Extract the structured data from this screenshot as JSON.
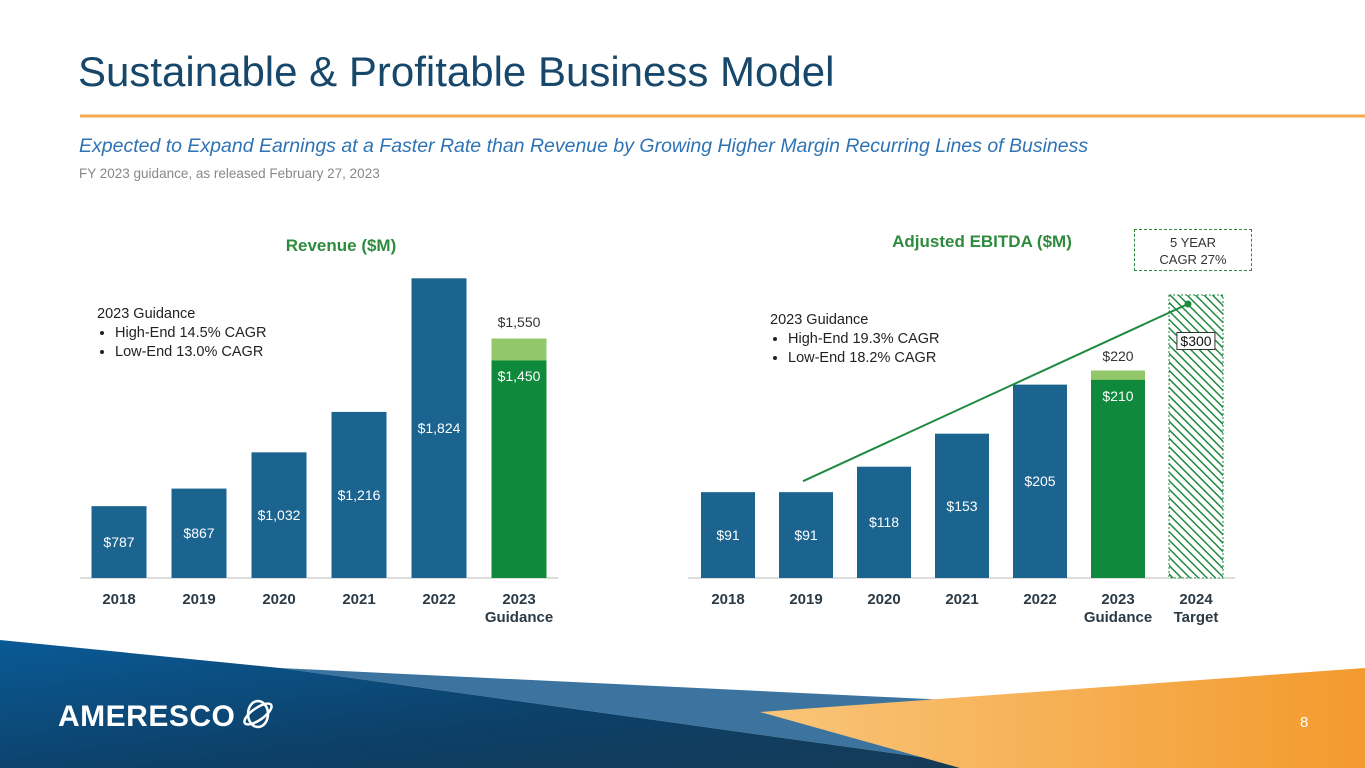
{
  "title": "Sustainable & Profitable Business Model",
  "subtitle": "Expected to Expand Earnings at a Faster Rate than Revenue by Growing Higher Margin Recurring Lines of Business",
  "note": "FY 2023 guidance, as released February 27, 2023",
  "logo": "AMERESCO",
  "page_number": "8",
  "chart_data": [
    {
      "type": "bar",
      "title": "Revenue ($M)",
      "categories": [
        "2018",
        "2019",
        "2020",
        "2021",
        "2022",
        "2023 Guidance"
      ],
      "ylim": [
        460,
        1830
      ],
      "series": [
        {
          "color": "#1b6490",
          "values": [
            787,
            867,
            1032,
            1216,
            1824,
            null
          ],
          "value_labels": [
            "$787",
            "$867",
            "$1,032",
            "$1,216",
            "$1,824",
            null
          ]
        },
        {
          "color": "#92c86b",
          "values": [
            null,
            null,
            null,
            null,
            null,
            1550
          ],
          "value_labels": [
            null,
            null,
            null,
            null,
            null,
            "$1,550"
          ]
        },
        {
          "color": "#0f8a3c",
          "values": [
            null,
            null,
            null,
            null,
            null,
            1450
          ],
          "value_labels": [
            null,
            null,
            null,
            null,
            null,
            "$1,450"
          ]
        }
      ],
      "annotation": {
        "title": "2023 Guidance",
        "items": [
          "High-End 14.5% CAGR",
          "Low-End 13.0% CAGR"
        ]
      }
    },
    {
      "type": "bar",
      "title": "Adjusted EBITDA ($M)",
      "categories": [
        "2018",
        "2019",
        "2020",
        "2021",
        "2022",
        "2023 Guidance",
        "2024 Target"
      ],
      "ylim": [
        0,
        300
      ],
      "series": [
        {
          "color": "#1b6490",
          "values": [
            91,
            91,
            118,
            153,
            205,
            null,
            null
          ],
          "value_labels": [
            "$91",
            "$91",
            "$118",
            "$153",
            "$205",
            null,
            null
          ]
        },
        {
          "color": "#92c86b",
          "values": [
            null,
            null,
            null,
            null,
            null,
            220,
            null
          ],
          "value_labels": [
            null,
            null,
            null,
            null,
            null,
            "$220",
            null
          ]
        },
        {
          "color": "#0f8a3c",
          "values": [
            null,
            null,
            null,
            null,
            null,
            210,
            null
          ],
          "value_labels": [
            null,
            null,
            null,
            null,
            null,
            "$210",
            null
          ]
        },
        {
          "color": "#1e8a3e",
          "pattern": "hatch",
          "values": [
            null,
            null,
            null,
            null,
            null,
            null,
            300
          ],
          "value_labels": [
            null,
            null,
            null,
            null,
            null,
            null,
            "$300"
          ]
        }
      ],
      "annotation": {
        "title": "2023 Guidance",
        "items": [
          "High-End 19.3% CAGR",
          "Low-End 18.2% CAGR"
        ]
      },
      "callout": [
        "5 YEAR",
        "CAGR 27%"
      ],
      "trend_color": "#1e8a3e"
    }
  ]
}
